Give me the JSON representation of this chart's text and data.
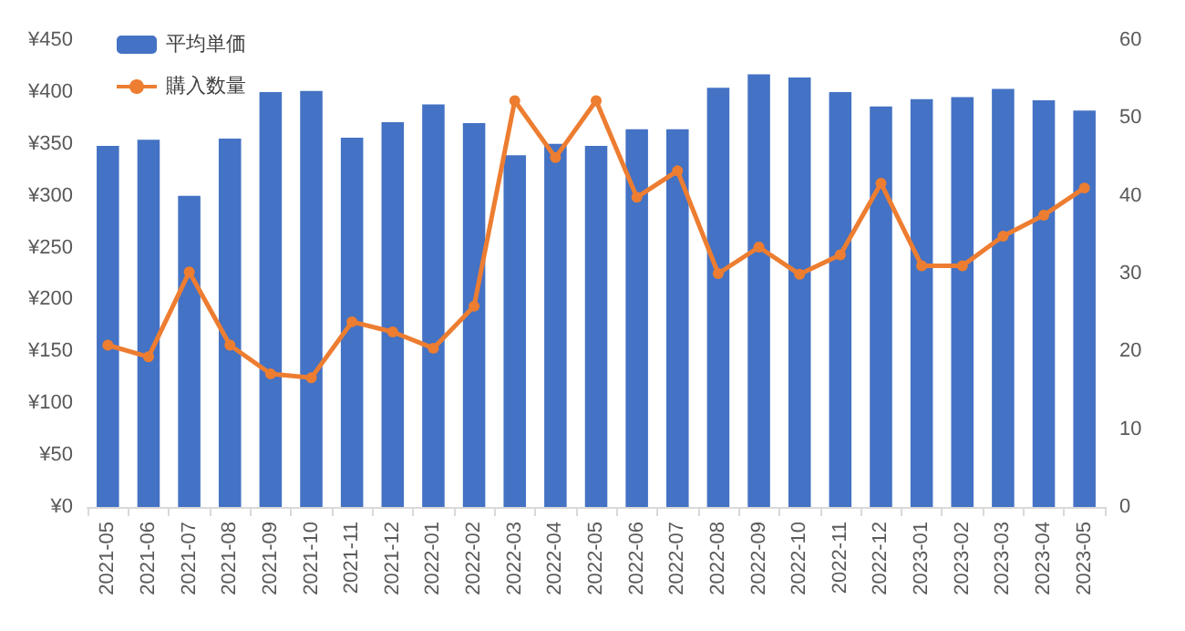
{
  "chart_data": {
    "type": "bar",
    "categories": [
      "2021-05",
      "2021-06",
      "2021-07",
      "2021-08",
      "2021-09",
      "2021-10",
      "2021-11",
      "2021-12",
      "2022-01",
      "2022-02",
      "2022-03",
      "2022-04",
      "2022-05",
      "2022-06",
      "2022-07",
      "2022-08",
      "2022-09",
      "2022-10",
      "2022-11",
      "2022-12",
      "2023-01",
      "2023-02",
      "2023-03",
      "2023-04",
      "2023-05"
    ],
    "series": [
      {
        "name": "平均単価",
        "color": "#4472c4",
        "values": [
          348,
          354,
          300,
          355,
          400,
          401,
          356,
          371,
          388,
          370,
          339,
          350,
          348,
          364,
          364,
          404,
          417,
          414,
          400,
          386,
          393,
          395,
          403,
          392,
          382
        ]
      },
      {
        "name": "購入数量",
        "type": "line",
        "axis": "y2",
        "color": "#ed7d31",
        "values": [
          20.8,
          19.3,
          30.2,
          20.8,
          17.1,
          16.6,
          23.8,
          22.5,
          20.4,
          25.8,
          52.2,
          44.9,
          52.2,
          39.8,
          43.2,
          30,
          33.4,
          29.9,
          32.4,
          41.6,
          31,
          31,
          34.8,
          37.5,
          41
        ]
      }
    ],
    "ylim": [
      0,
      450
    ],
    "yticks": [
      {
        "value": 0,
        "label": "¥0"
      },
      {
        "value": 50,
        "label": "¥50"
      },
      {
        "value": 100,
        "label": "¥100"
      },
      {
        "value": 150,
        "label": "¥150"
      },
      {
        "value": 200,
        "label": "¥200"
      },
      {
        "value": 250,
        "label": "¥250"
      },
      {
        "value": 300,
        "label": "¥300"
      },
      {
        "value": 350,
        "label": "¥350"
      },
      {
        "value": 400,
        "label": "¥400"
      },
      {
        "value": 450,
        "label": "¥450"
      }
    ],
    "y2lim": [
      0,
      60
    ],
    "y2ticks": [
      0,
      10,
      20,
      30,
      40,
      50,
      60
    ],
    "marker": "circle",
    "grid": false,
    "legend": "top left"
  }
}
